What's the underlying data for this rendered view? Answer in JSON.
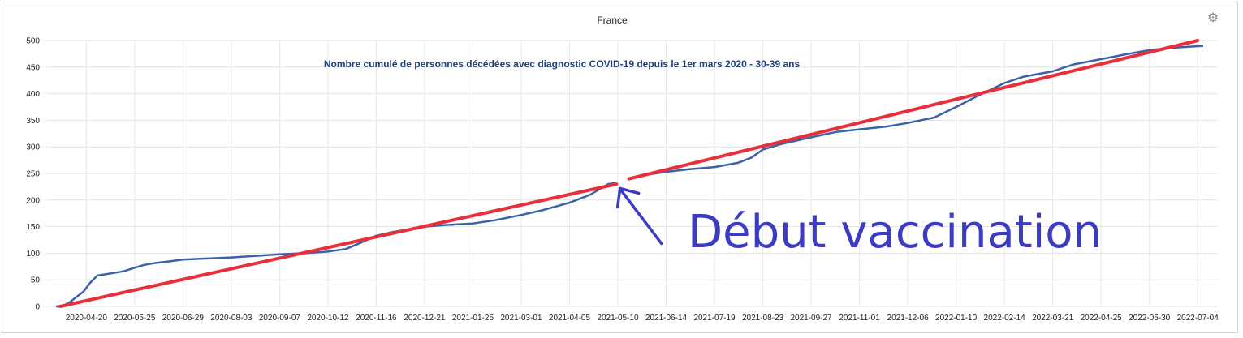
{
  "chart_data": {
    "type": "line",
    "title": "France",
    "subtitle": "Nombre cumulé de personnes décédées avec diagnostic COVID-19 depuis le 1er mars 2020 - 30-39 ans",
    "xlabel": "",
    "ylabel": "",
    "ylim": [
      0,
      500
    ],
    "y_ticks": [
      0,
      50,
      100,
      150,
      200,
      250,
      300,
      350,
      400,
      450,
      500
    ],
    "xlim": [
      "2020-03-22",
      "2022-07-18"
    ],
    "x_ticks": [
      "2020-04-20",
      "2020-05-25",
      "2020-06-29",
      "2020-08-03",
      "2020-09-07",
      "2020-10-12",
      "2020-11-16",
      "2020-12-21",
      "2021-01-25",
      "2021-03-01",
      "2021-04-05",
      "2021-05-10",
      "2021-06-14",
      "2021-07-19",
      "2021-08-23",
      "2021-09-27",
      "2021-11-01",
      "2021-12-06",
      "2022-01-10",
      "2022-02-14",
      "2022-03-21",
      "2022-04-25",
      "2022-05-30",
      "2022-07-04"
    ],
    "grid": true,
    "legend": "none",
    "series": [
      {
        "color": "#3a62a8",
        "segments": [
          [
            [
              "2020-03-29",
              0
            ],
            [
              "2020-04-03",
              1
            ],
            [
              "2020-04-08",
              8
            ],
            [
              "2020-04-13",
              18
            ],
            [
              "2020-04-18",
              28
            ],
            [
              "2020-04-23",
              45
            ],
            [
              "2020-04-28",
              58
            ],
            [
              "2020-05-03",
              60
            ],
            [
              "2020-05-10",
              63
            ],
            [
              "2020-05-17",
              66
            ],
            [
              "2020-05-24",
              72
            ],
            [
              "2020-06-01",
              78
            ],
            [
              "2020-06-10",
              82
            ],
            [
              "2020-06-20",
              85
            ],
            [
              "2020-06-29",
              88
            ],
            [
              "2020-07-15",
              90
            ],
            [
              "2020-08-03",
              92
            ],
            [
              "2020-08-20",
              95
            ],
            [
              "2020-09-07",
              98
            ],
            [
              "2020-09-25",
              100
            ],
            [
              "2020-10-12",
              103
            ],
            [
              "2020-10-25",
              108
            ],
            [
              "2020-11-05",
              120
            ],
            [
              "2020-11-16",
              133
            ],
            [
              "2020-11-28",
              140
            ],
            [
              "2020-12-10",
              145
            ],
            [
              "2020-12-21",
              150
            ],
            [
              "2021-01-05",
              153
            ],
            [
              "2021-01-25",
              156
            ],
            [
              "2021-02-10",
              162
            ],
            [
              "2021-03-01",
              172
            ],
            [
              "2021-03-15",
              180
            ],
            [
              "2021-04-05",
              195
            ],
            [
              "2021-04-20",
              210
            ],
            [
              "2021-05-03",
              230
            ],
            [
              "2021-05-08",
              232
            ]
          ],
          [
            [
              "2021-05-18",
              239
            ],
            [
              "2021-06-01",
              248
            ],
            [
              "2021-06-14",
              253
            ],
            [
              "2021-07-01",
              258
            ],
            [
              "2021-07-19",
              262
            ],
            [
              "2021-08-05",
              270
            ],
            [
              "2021-08-15",
              280
            ],
            [
              "2021-08-23",
              295
            ],
            [
              "2021-09-05",
              305
            ],
            [
              "2021-09-27",
              318
            ],
            [
              "2021-10-15",
              328
            ],
            [
              "2021-11-01",
              333
            ],
            [
              "2021-11-20",
              338
            ],
            [
              "2021-12-06",
              345
            ],
            [
              "2021-12-25",
              355
            ],
            [
              "2022-01-10",
              375
            ],
            [
              "2022-01-25",
              395
            ],
            [
              "2022-02-14",
              420
            ],
            [
              "2022-02-28",
              432
            ],
            [
              "2022-03-21",
              442
            ],
            [
              "2022-04-05",
              455
            ],
            [
              "2022-04-25",
              465
            ],
            [
              "2022-05-15",
              475
            ],
            [
              "2022-05-30",
              482
            ],
            [
              "2022-06-20",
              487
            ],
            [
              "2022-07-08",
              490
            ]
          ]
        ]
      }
    ],
    "overlays": {
      "trend_color": "#e8303a",
      "trend_lines": [
        [
          [
            "2020-04-01",
            0
          ],
          [
            "2021-05-09",
            230
          ]
        ],
        [
          [
            "2021-05-18",
            240
          ],
          [
            "2022-07-04",
            500
          ]
        ]
      ],
      "arrow_color": "#3b3bc4",
      "arrow_tip": [
        "2021-05-11",
        225
      ],
      "annotation_text": "Début vaccination"
    },
    "settings_icon": "gear-icon"
  }
}
